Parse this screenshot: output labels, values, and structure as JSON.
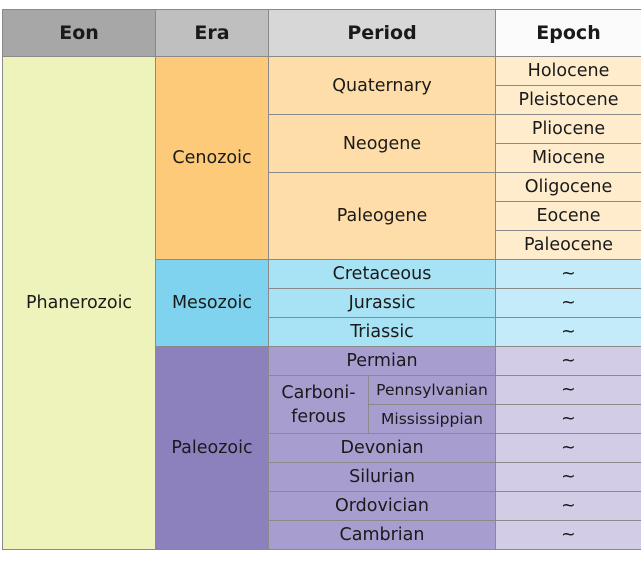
{
  "headers": {
    "eon": "Eon",
    "era": "Era",
    "period": "Period",
    "epoch": "Epoch"
  },
  "eon": "Phanerozoic",
  "eras": {
    "cenozoic": "Cenozoic",
    "mesozoic": "Mesozoic",
    "paleozoic": "Paleozoic"
  },
  "periods": {
    "quaternary": "Quaternary",
    "neogene": "Neogene",
    "paleogene": "Paleogene",
    "cretaceous": "Cretaceous",
    "jurassic": "Jurassic",
    "triassic": "Triassic",
    "permian": "Permian",
    "carboniferous_1": "Carboni-",
    "carboniferous_2": "ferous",
    "pennsylvanian": "Pennsylvanian",
    "mississippian": "Mississippian",
    "devonian": "Devonian",
    "silurian": "Silurian",
    "ordovician": "Ordovician",
    "cambrian": "Cambrian"
  },
  "epochs": {
    "holocene": "Holocene",
    "pleistocene": "Pleistocene",
    "pliocene": "Pliocene",
    "miocene": "Miocene",
    "oligocene": "Oligocene",
    "eocene": "Eocene",
    "paleocene": "Paleocene"
  },
  "placeholder": "~"
}
